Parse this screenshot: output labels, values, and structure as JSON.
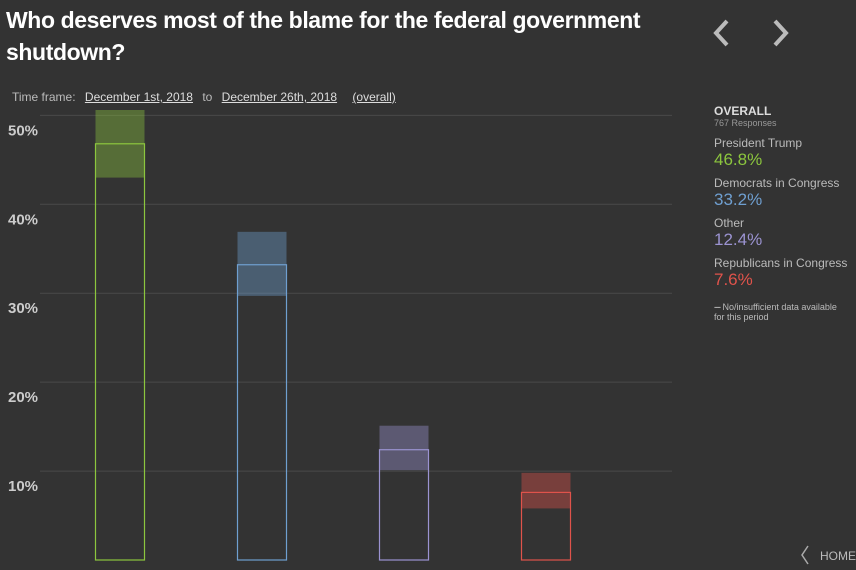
{
  "chart_data": {
    "type": "bar",
    "title": "Who deserves most of the blame for the federal government shutdown?",
    "categories": [
      "President Trump",
      "Democrats in Congress",
      "Other",
      "Republicans in Congress"
    ],
    "values": [
      46.8,
      33.2,
      12.4,
      7.6
    ],
    "value_labels": [
      "46.8%",
      "33.2%",
      "12.4%",
      "7.6%"
    ],
    "intervals": [
      [
        43.0,
        50.6
      ],
      [
        29.7,
        36.9
      ],
      [
        10.1,
        15.1
      ],
      [
        5.8,
        9.8
      ]
    ],
    "colors": [
      "#8cc63e",
      "#6f9fd0",
      "#9b93d1",
      "#e0534b"
    ],
    "ylim": [
      0,
      50.6
    ],
    "yticks": [
      {
        "value": 10,
        "label": "10%"
      },
      {
        "value": 20,
        "label": "20%"
      },
      {
        "value": 30,
        "label": "30%"
      },
      {
        "value": 40,
        "label": "40%"
      },
      {
        "value": 50,
        "label": "50%"
      }
    ],
    "grid": true
  },
  "controls": {
    "label": "Time frame:",
    "start": "December 1st, 2018",
    "separator": "to",
    "end": "December 26th, 2018",
    "mode": "(overall)"
  },
  "legend": {
    "title": "OVERALL",
    "subtitle": "767 Responses",
    "note": "No/insufficient data available for this period"
  },
  "nav": {
    "home": "HOME"
  }
}
